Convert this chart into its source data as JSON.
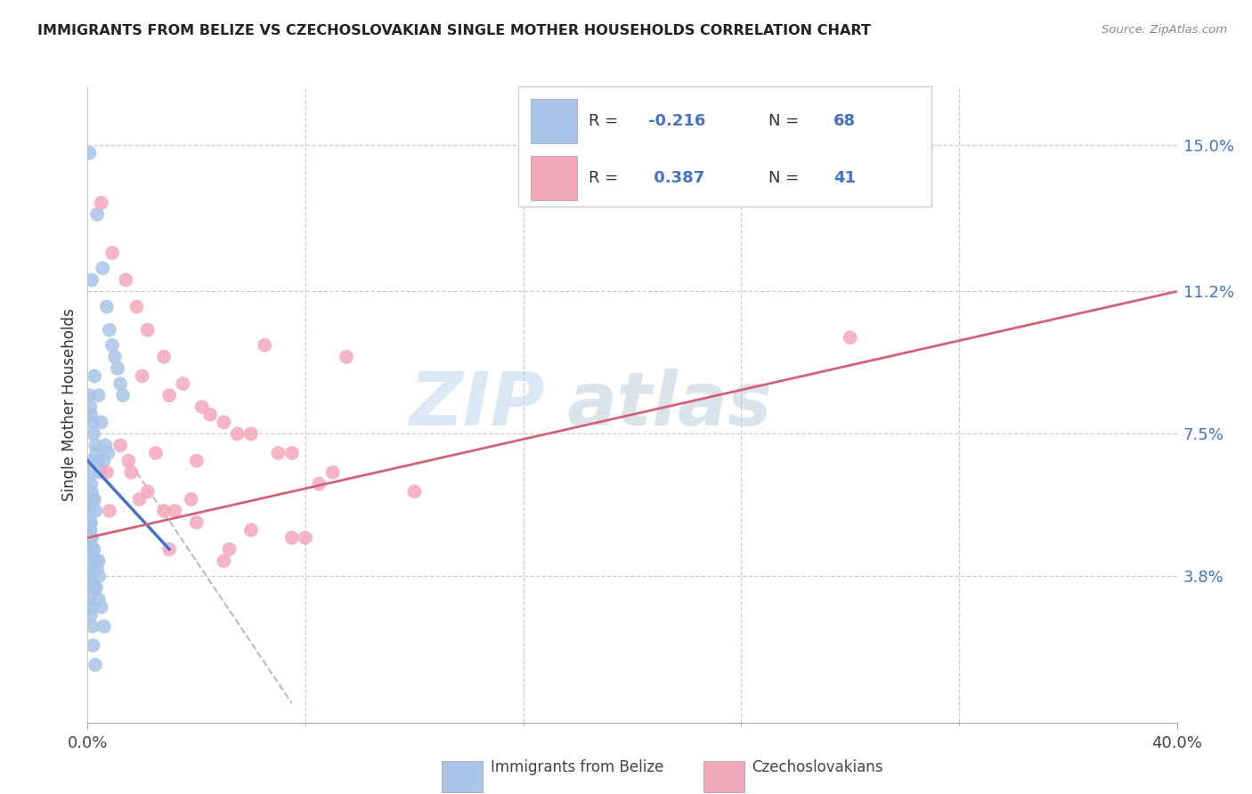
{
  "title": "IMMIGRANTS FROM BELIZE VS CZECHOSLOVAKIAN SINGLE MOTHER HOUSEHOLDS CORRELATION CHART",
  "source": "Source: ZipAtlas.com",
  "ylabel": "Single Mother Households",
  "ytick_labels": [
    "3.8%",
    "7.5%",
    "11.2%",
    "15.0%"
  ],
  "ytick_values": [
    3.8,
    7.5,
    11.2,
    15.0
  ],
  "xlim": [
    0.0,
    40.0
  ],
  "ylim": [
    0.0,
    16.5
  ],
  "color_blue": "#a8c4e8",
  "color_pink": "#f4a8bc",
  "color_line_blue": "#4472c4",
  "color_line_pink": "#d4607a",
  "color_dashed": "#bbbbbb",
  "watermark_text": "ZIP",
  "watermark_text2": "atlas",
  "belize_x": [
    0.07,
    0.35,
    0.55,
    0.7,
    0.8,
    0.9,
    1.0,
    1.1,
    1.2,
    1.3,
    0.15,
    0.25,
    0.4,
    0.5,
    0.65,
    0.75,
    0.6,
    0.05,
    0.1,
    0.12,
    0.18,
    0.22,
    0.28,
    0.32,
    0.38,
    0.45,
    0.08,
    0.1,
    0.13,
    0.15,
    0.18,
    0.25,
    0.3,
    0.12,
    0.08,
    0.05,
    0.08,
    0.1,
    0.06,
    0.05,
    0.09,
    0.15,
    0.22,
    0.4,
    0.35,
    0.06,
    0.18,
    0.1,
    0.09,
    0.07,
    0.06,
    0.09,
    0.12,
    0.18,
    0.2,
    0.28,
    0.07,
    0.09,
    0.12,
    0.22,
    0.32,
    0.42,
    0.08,
    0.3,
    0.3,
    0.4,
    0.5,
    0.6
  ],
  "belize_y": [
    14.8,
    13.2,
    11.8,
    10.8,
    10.2,
    9.8,
    9.5,
    9.2,
    8.8,
    8.5,
    11.5,
    9.0,
    8.5,
    7.8,
    7.2,
    7.0,
    6.8,
    8.5,
    8.2,
    8.0,
    7.8,
    7.5,
    7.2,
    7.0,
    6.8,
    6.5,
    6.8,
    6.5,
    6.2,
    6.0,
    5.8,
    5.8,
    5.5,
    5.2,
    5.0,
    5.5,
    5.2,
    5.0,
    4.8,
    4.5,
    4.5,
    4.8,
    4.5,
    4.2,
    4.0,
    4.2,
    4.0,
    3.8,
    3.7,
    3.5,
    3.2,
    3.0,
    2.8,
    2.5,
    2.0,
    1.5,
    5.5,
    5.0,
    4.8,
    4.5,
    4.2,
    3.8,
    5.8,
    3.5,
    3.5,
    3.2,
    3.0,
    2.5
  ],
  "czech_x": [
    0.5,
    0.9,
    1.4,
    1.8,
    2.2,
    2.8,
    3.5,
    4.2,
    5.0,
    6.0,
    7.5,
    9.0,
    2.0,
    3.0,
    4.5,
    5.5,
    7.0,
    9.5,
    12.0,
    28.0,
    1.2,
    2.5,
    4.0,
    6.5,
    8.5,
    1.6,
    2.2,
    3.8,
    0.8,
    1.5,
    2.8,
    4.0,
    6.0,
    8.0,
    3.2,
    5.2,
    7.5,
    0.7,
    1.9,
    3.0,
    5.0
  ],
  "czech_y": [
    13.5,
    12.2,
    11.5,
    10.8,
    10.2,
    9.5,
    8.8,
    8.2,
    7.8,
    7.5,
    7.0,
    6.5,
    9.0,
    8.5,
    8.0,
    7.5,
    7.0,
    9.5,
    6.0,
    10.0,
    7.2,
    7.0,
    6.8,
    9.8,
    6.2,
    6.5,
    6.0,
    5.8,
    5.5,
    6.8,
    5.5,
    5.2,
    5.0,
    4.8,
    5.5,
    4.5,
    4.8,
    6.5,
    5.8,
    4.5,
    4.2
  ],
  "belize_line_x": [
    0.0,
    3.0
  ],
  "belize_line_y": [
    6.8,
    4.5
  ],
  "czech_line_x": [
    0.0,
    40.0
  ],
  "czech_line_y": [
    4.8,
    11.2
  ],
  "dashed_line_x": [
    1.8,
    7.5
  ],
  "dashed_line_y": [
    6.5,
    0.5
  ]
}
